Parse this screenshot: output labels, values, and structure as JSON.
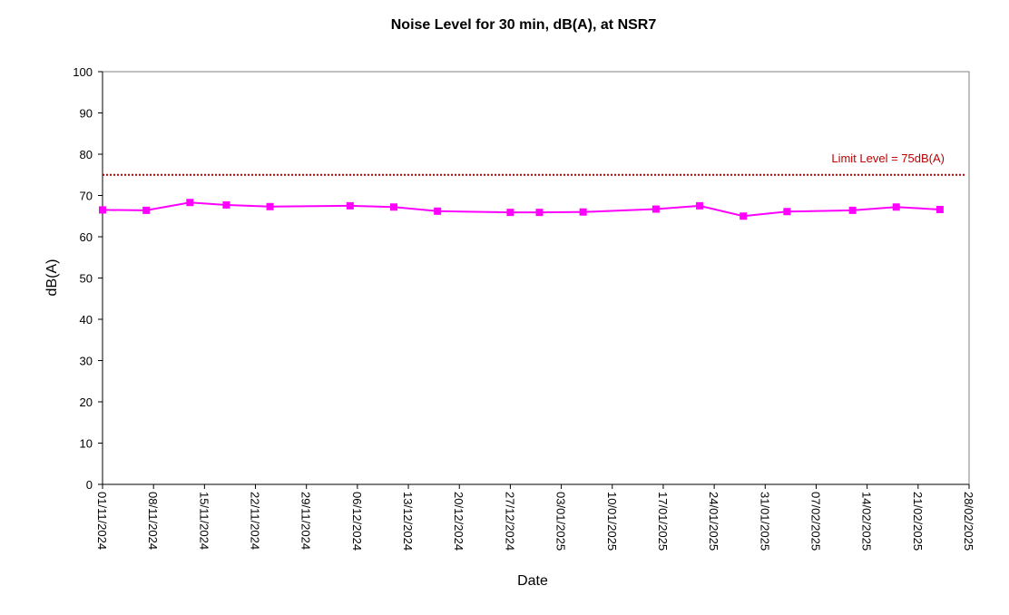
{
  "chart_data": {
    "type": "line",
    "title": "Noise Level for 30 min, dB(A), at NSR7",
    "xlabel": "Date",
    "ylabel": "dB(A)",
    "ylim": [
      0,
      100
    ],
    "yticks": [
      0,
      10,
      20,
      30,
      40,
      50,
      60,
      70,
      80,
      90,
      100
    ],
    "xlim": [
      "2024-11-01",
      "2025-02-28"
    ],
    "xtick_labels": [
      "01/11/2024",
      "08/11/2024",
      "15/11/2024",
      "22/11/2024",
      "29/11/2024",
      "06/12/2024",
      "13/12/2024",
      "20/12/2024",
      "27/12/2024",
      "03/01/2025",
      "10/01/2025",
      "17/01/2025",
      "24/01/2025",
      "31/01/2025",
      "07/02/2025",
      "14/02/2025",
      "21/02/2025",
      "28/02/2025"
    ],
    "grid": false,
    "series": [
      {
        "color": "#ff00ff",
        "marker": "square",
        "x": [
          "2024-11-01",
          "2024-11-07",
          "2024-11-13",
          "2024-11-18",
          "2024-11-24",
          "2024-12-05",
          "2024-12-11",
          "2024-12-17",
          "2024-12-27",
          "2024-12-31",
          "2025-01-06",
          "2025-01-16",
          "2025-01-22",
          "2025-01-28",
          "2025-02-03",
          "2025-02-12",
          "2025-02-18",
          "2025-02-24"
        ],
        "y": [
          66.5,
          66.4,
          68.3,
          67.7,
          67.3,
          67.5,
          67.2,
          66.2,
          65.9,
          65.9,
          66.0,
          66.7,
          67.5,
          65.0,
          66.1,
          66.4,
          67.2,
          66.6
        ]
      }
    ],
    "limit_line": {
      "value": 75,
      "label": "Limit Level  = 75dB(A)",
      "color": "#c00000",
      "style": "dotted"
    }
  }
}
